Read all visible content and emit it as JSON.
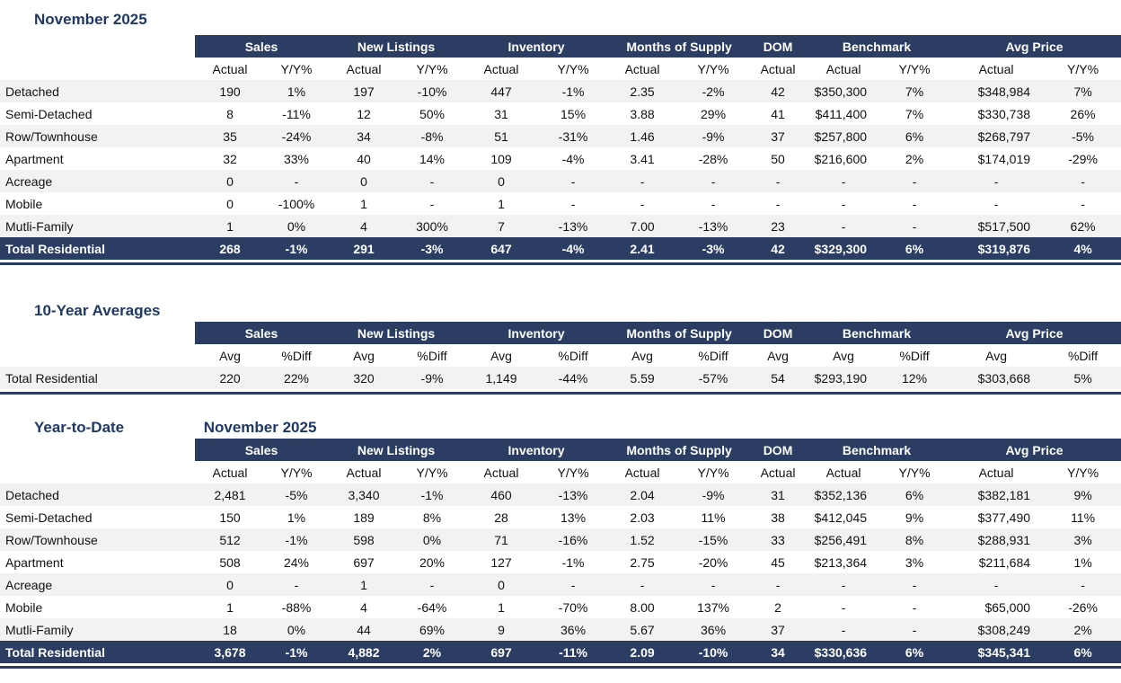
{
  "colors": {
    "navy": "#2B3D63",
    "title_navy": "#1F3864",
    "stripe_gray": "#F2F2F2"
  },
  "columns": {
    "groups": [
      {
        "label": "Sales",
        "span": 2
      },
      {
        "label": "New Listings",
        "span": 2
      },
      {
        "label": "Inventory",
        "span": 2
      },
      {
        "label": "Months of Supply",
        "span": 2
      },
      {
        "label": "DOM",
        "span": 1
      },
      {
        "label": "Benchmark",
        "span": 2
      },
      {
        "label": "Avg Price",
        "span": 2
      }
    ],
    "subheader_sets": {
      "monthly": [
        "Actual",
        "Y/Y%",
        "Actual",
        "Y/Y%",
        "Actual",
        "Y/Y%",
        "Actual",
        "Y/Y%",
        "Actual",
        "Actual",
        "Y/Y%",
        "Actual",
        "Y/Y%"
      ],
      "averages": [
        "Avg",
        "%Diff",
        "Avg",
        "%Diff",
        "Avg",
        "%Diff",
        "Avg",
        "%Diff",
        "Avg",
        "Avg",
        "%Diff",
        "Avg",
        "%Diff"
      ]
    }
  },
  "report": {
    "sections": [
      {
        "id": "monthly",
        "titles": [
          "November 2025"
        ],
        "subheader_set": "monthly",
        "total_style": "navy",
        "rows": [
          {
            "label": "Detached",
            "total": false,
            "values": [
              "190",
              "1%",
              "197",
              "-10%",
              "447",
              "-1%",
              "2.35",
              "-2%",
              "42",
              "$350,300",
              "7%",
              "$348,984",
              "7%"
            ]
          },
          {
            "label": "Semi-Detached",
            "total": false,
            "values": [
              "8",
              "-11%",
              "12",
              "50%",
              "31",
              "15%",
              "3.88",
              "29%",
              "41",
              "$411,400",
              "7%",
              "$330,738",
              "26%"
            ]
          },
          {
            "label": "Row/Townhouse",
            "total": false,
            "values": [
              "35",
              "-24%",
              "34",
              "-8%",
              "51",
              "-31%",
              "1.46",
              "-9%",
              "37",
              "$257,800",
              "6%",
              "$268,797",
              "-5%"
            ]
          },
          {
            "label": "Apartment",
            "total": false,
            "values": [
              "32",
              "33%",
              "40",
              "14%",
              "109",
              "-4%",
              "3.41",
              "-28%",
              "50",
              "$216,600",
              "2%",
              "$174,019",
              "-29%"
            ]
          },
          {
            "label": "Acreage",
            "total": false,
            "values": [
              "0",
              "-",
              "0",
              "-",
              "0",
              "-",
              "-",
              "-",
              "-",
              "-",
              "-",
              "-",
              "-"
            ]
          },
          {
            "label": "Mobile",
            "total": false,
            "values": [
              "0",
              "-100%",
              "1",
              "-",
              "1",
              "-",
              "-",
              "-",
              "-",
              "-",
              "-",
              "-",
              "-"
            ]
          },
          {
            "label": "Mutli-Family",
            "total": false,
            "values": [
              "1",
              "0%",
              "4",
              "300%",
              "7",
              "-13%",
              "7.00",
              "-13%",
              "23",
              "-",
              "-",
              "$517,500",
              "62%"
            ]
          },
          {
            "label": "Total Residential",
            "total": true,
            "values": [
              "268",
              "-1%",
              "291",
              "-3%",
              "647",
              "-4%",
              "2.41",
              "-3%",
              "42",
              "$329,300",
              "6%",
              "$319,876",
              "4%"
            ]
          }
        ]
      },
      {
        "id": "ten-year-averages",
        "titles": [
          "10-Year Averages"
        ],
        "subheader_set": "averages",
        "total_style": "plain",
        "rows": [
          {
            "label": "Total Residential",
            "total": true,
            "values": [
              "220",
              "22%",
              "320",
              "-9%",
              "1,149",
              "-44%",
              "5.59",
              "-57%",
              "54",
              "$293,190",
              "12%",
              "$303,668",
              "5%"
            ]
          }
        ]
      },
      {
        "id": "year-to-date",
        "titles": [
          "Year-to-Date",
          "November 2025"
        ],
        "subheader_set": "monthly",
        "total_style": "navy",
        "rows": [
          {
            "label": "Detached",
            "total": false,
            "values": [
              "2,481",
              "-5%",
              "3,340",
              "-1%",
              "460",
              "-13%",
              "2.04",
              "-9%",
              "31",
              "$352,136",
              "6%",
              "$382,181",
              "9%"
            ]
          },
          {
            "label": "Semi-Detached",
            "total": false,
            "values": [
              "150",
              "1%",
              "189",
              "8%",
              "28",
              "13%",
              "2.03",
              "11%",
              "38",
              "$412,045",
              "9%",
              "$377,490",
              "11%"
            ]
          },
          {
            "label": "Row/Townhouse",
            "total": false,
            "values": [
              "512",
              "-1%",
              "598",
              "0%",
              "71",
              "-16%",
              "1.52",
              "-15%",
              "33",
              "$256,491",
              "8%",
              "$288,931",
              "3%"
            ]
          },
          {
            "label": "Apartment",
            "total": false,
            "values": [
              "508",
              "24%",
              "697",
              "20%",
              "127",
              "-1%",
              "2.75",
              "-20%",
              "45",
              "$213,364",
              "3%",
              "$211,684",
              "1%"
            ]
          },
          {
            "label": "Acreage",
            "total": false,
            "values": [
              "0",
              "-",
              "1",
              "-",
              "0",
              "-",
              "-",
              "-",
              "-",
              "-",
              "-",
              "-",
              "-"
            ]
          },
          {
            "label": "Mobile",
            "total": false,
            "values": [
              "1",
              "-88%",
              "4",
              "-64%",
              "1",
              "-70%",
              "8.00",
              "137%",
              "2",
              "-",
              "-",
              "$65,000",
              "-26%"
            ]
          },
          {
            "label": "Mutli-Family",
            "total": false,
            "values": [
              "18",
              "0%",
              "44",
              "69%",
              "9",
              "36%",
              "5.67",
              "36%",
              "37",
              "-",
              "-",
              "$308,249",
              "2%"
            ]
          },
          {
            "label": "Total Residential",
            "total": true,
            "values": [
              "3,678",
              "-1%",
              "4,882",
              "2%",
              "697",
              "-11%",
              "2.09",
              "-10%",
              "34",
              "$330,636",
              "6%",
              "$345,341",
              "6%"
            ]
          }
        ]
      }
    ]
  }
}
